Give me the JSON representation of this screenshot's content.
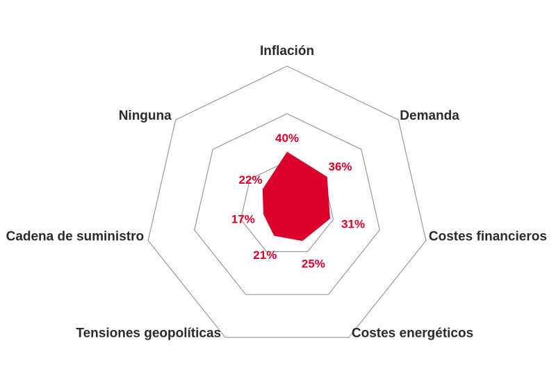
{
  "chart_data": {
    "type": "radar",
    "categories": [
      "Inflación",
      "Demanda",
      "Costes financieros",
      "Costes energéticos",
      "Tensiones geopolíticas",
      "Cadena de suministro",
      "Ninguna"
    ],
    "values": [
      40,
      36,
      31,
      25,
      21,
      17,
      22
    ],
    "value_labels": [
      "40%",
      "36%",
      "31%",
      "25%",
      "21%",
      "17%",
      "22%"
    ],
    "rlim": [
      0,
      100
    ],
    "ring_values": [
      33.3,
      66.7,
      100
    ],
    "grid": true,
    "legend": "none",
    "series_color": "#d9002b",
    "label_color": "#2b2b2b",
    "grid_color": "#9a9a9a"
  }
}
